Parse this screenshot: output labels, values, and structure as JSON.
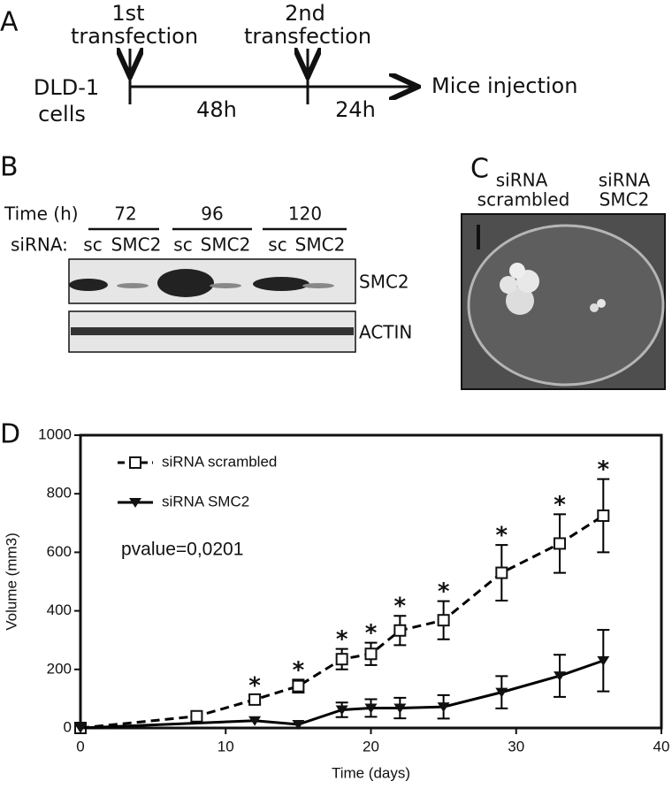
{
  "panel_a": {
    "label": "A",
    "first_top": "1st",
    "first_bottom": "transfection",
    "second_top": "2nd",
    "second_bottom": "transfection",
    "cells_top": "DLD-1",
    "cells_bottom": "cells",
    "interval_1": "48h",
    "interval_2": "24h",
    "end": "Mice injection"
  },
  "panel_b": {
    "label": "B",
    "time_label": "Time (h)",
    "times": [
      "72",
      "96",
      "120"
    ],
    "sirna_label": "siRNA:",
    "lanes": [
      "sc",
      "SMC2",
      "sc",
      "SMC2",
      "sc",
      "SMC2"
    ],
    "blots": [
      "SMC2",
      "ACTIN"
    ]
  },
  "panel_c": {
    "label": "C",
    "left_top": "siRNA",
    "left_bottom": "scrambled",
    "right_top": "siRNA",
    "right_bottom": "SMC2"
  },
  "chart_data": {
    "type": "line",
    "panel_label": "D",
    "x_label": "Time (days)",
    "y_label": "Volume (mm3)",
    "xlim": [
      0,
      40
    ],
    "xticks": [
      0,
      10,
      20,
      30,
      40
    ],
    "ylim": [
      0,
      1000
    ],
    "yticks": [
      0,
      200,
      400,
      600,
      800,
      1000
    ],
    "legend": "upper left",
    "annotation": "pvalue=0,0201",
    "significance": {
      "label": "*",
      "x": [
        12,
        15,
        18,
        20,
        22,
        25,
        29,
        33,
        36
      ]
    },
    "series": [
      {
        "name": "siRNA scrambled",
        "color": "#000000",
        "dash": true,
        "marker": "square-open",
        "x": [
          0,
          8,
          12,
          15,
          18,
          20,
          22,
          25,
          29,
          33,
          36
        ],
        "values": [
          0,
          40,
          97,
          143,
          235,
          253,
          333,
          368,
          530,
          630,
          725
        ],
        "errors": [
          0,
          0,
          15,
          22,
          35,
          38,
          50,
          65,
          95,
          100,
          125
        ]
      },
      {
        "name": "siRNA SMC2",
        "color": "#000000",
        "dash": false,
        "marker": "triangle-down",
        "x": [
          0,
          12,
          15,
          18,
          20,
          22,
          25,
          29,
          33,
          36
        ],
        "values": [
          0,
          25,
          12,
          62,
          68,
          68,
          72,
          122,
          178,
          230
        ],
        "errors": [
          0,
          0,
          0,
          25,
          30,
          35,
          40,
          55,
          72,
          105
        ]
      }
    ]
  }
}
